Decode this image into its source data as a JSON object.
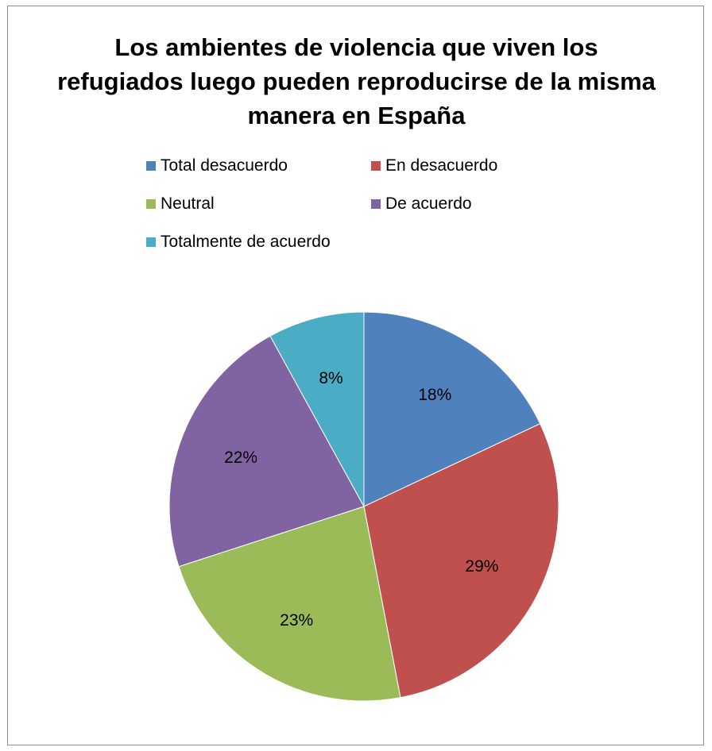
{
  "chart_data": {
    "type": "pie",
    "title": "Los ambientes de violencia que viven los refugiados luego pueden reproducirse de la misma manera en España",
    "categories": [
      "Total desacuerdo",
      "En desacuerdo",
      "Neutral",
      "De acuerdo",
      "Totalmente de acuerdo"
    ],
    "values": [
      18,
      29,
      23,
      22,
      8
    ],
    "data_labels": [
      "18%",
      "29%",
      "23%",
      "22%",
      "8%"
    ],
    "colors": [
      "#4f81bd",
      "#c0504d",
      "#9bbb59",
      "#8064a2",
      "#4bacc6"
    ],
    "legend_position": "top",
    "start": "12 o'clock, clockwise"
  }
}
